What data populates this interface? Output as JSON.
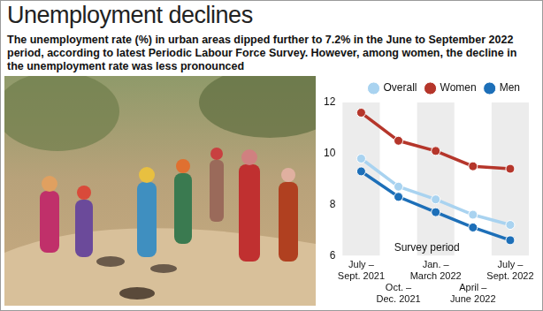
{
  "chart_data": {
    "type": "line",
    "title": "Unemployment declines",
    "subtitle": "The unemployment rate (%) in urban areas dipped further to 7.2% in the June to September 2022 period, according to latest Periodic Labour Force Survey. However, among women, the decline in the unemployment rate was less pronounced",
    "xlabel": "Survey period",
    "categories": [
      "July – Sept. 2021",
      "Oct. – Dec. 2021",
      "Jan. – March 2022",
      "April – June 2022",
      "July – Sept. 2022"
    ],
    "series": [
      {
        "name": "Men",
        "color": "#1d6fb8",
        "values": [
          9.3,
          8.3,
          7.7,
          7.1,
          6.6
        ]
      },
      {
        "name": "Women",
        "color": "#b5362b",
        "values": [
          11.6,
          10.5,
          10.1,
          9.5,
          9.4
        ]
      },
      {
        "name": "Overall",
        "color": "#a9d3f0",
        "values": [
          9.8,
          8.7,
          8.2,
          7.6,
          7.2
        ]
      }
    ],
    "ylim": [
      6,
      12
    ],
    "yticks": [
      6,
      8,
      10,
      12
    ],
    "grid": false,
    "legend": "top-right",
    "marker": "circle"
  }
}
